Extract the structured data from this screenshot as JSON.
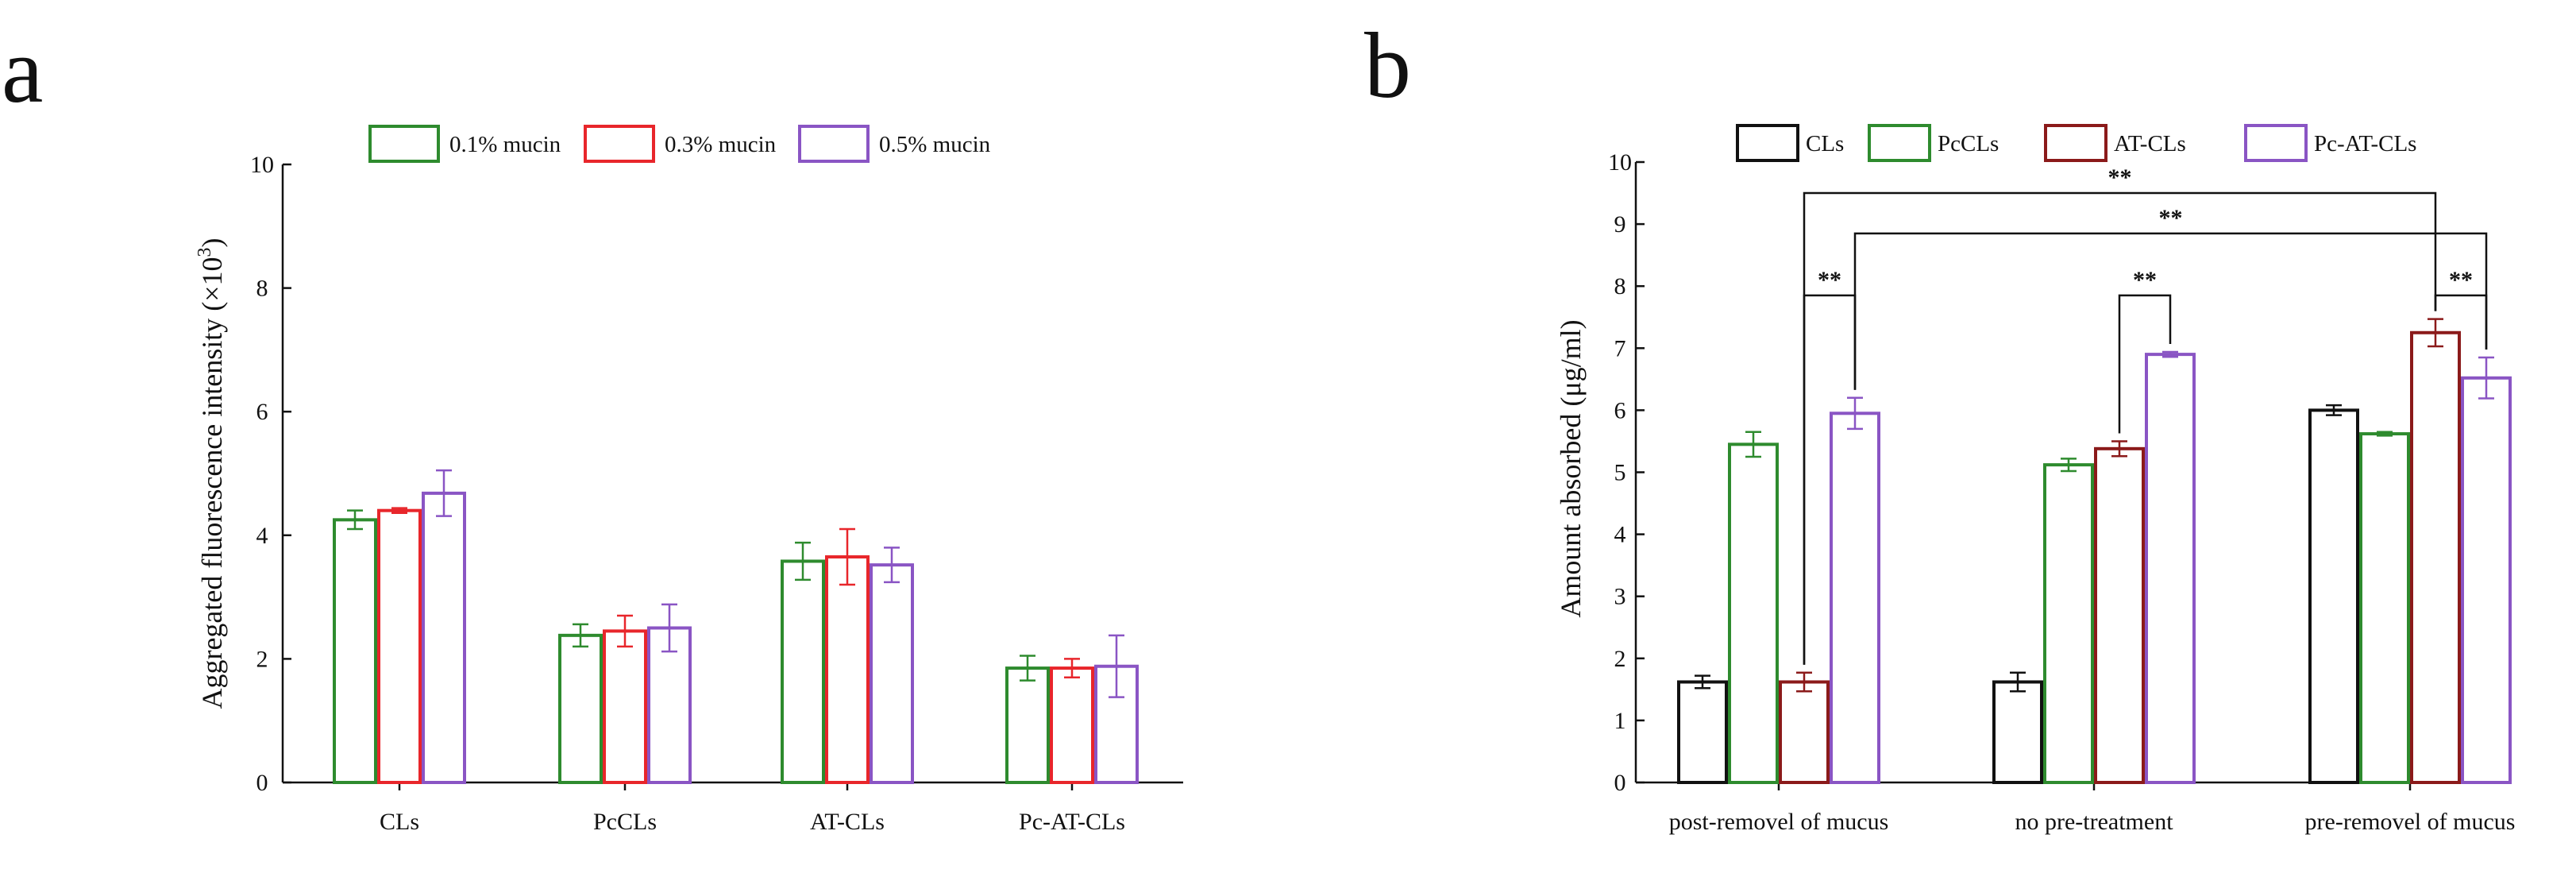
{
  "panel_letters": [
    "a",
    "b"
  ],
  "chart_data": [
    {
      "type": "bar",
      "panel": "a",
      "title": "",
      "xlabel": "",
      "ylabel": "Aggregated fluorescence intensity (×10",
      "ylabel_superscript": "3",
      "ylabel_close": ")",
      "ylim": [
        0,
        10
      ],
      "yticks": [
        0,
        2,
        4,
        6,
        8,
        10
      ],
      "categories": [
        "CLs",
        "PcCLs",
        "AT-CLs",
        "Pc-AT-CLs"
      ],
      "legend_position": "top",
      "series": [
        {
          "name": "0.1% mucin",
          "color": "#2e8b2e",
          "values": [
            4.25,
            2.38,
            3.58,
            1.85
          ],
          "errors": [
            0.15,
            0.18,
            0.3,
            0.2
          ]
        },
        {
          "name": "0.3% mucin",
          "color": "#e8262b",
          "values": [
            4.4,
            2.45,
            3.65,
            1.85
          ],
          "errors": [
            0.04,
            0.25,
            0.45,
            0.15
          ]
        },
        {
          "name": "0.5% mucin",
          "color": "#8a55c4",
          "values": [
            4.68,
            2.5,
            3.52,
            1.88
          ],
          "errors": [
            0.37,
            0.38,
            0.28,
            0.5
          ]
        }
      ]
    },
    {
      "type": "bar",
      "panel": "b",
      "title": "",
      "xlabel": "",
      "ylabel": "Amount absorbed (μg/ml)",
      "ylim": [
        0,
        10
      ],
      "yticks": [
        0,
        1,
        2,
        3,
        4,
        5,
        6,
        7,
        8,
        9,
        10
      ],
      "categories": [
        "post-removel of mucus",
        "no pre-treatment",
        "pre-removel of mucus"
      ],
      "legend_position": "top",
      "series": [
        {
          "name": "CLs",
          "color": "#111111",
          "values": [
            1.62,
            1.62,
            6.0
          ],
          "errors": [
            0.1,
            0.15,
            0.08
          ]
        },
        {
          "name": "PcCLs",
          "color": "#2e8b2e",
          "values": [
            5.45,
            5.12,
            5.62
          ],
          "errors": [
            0.2,
            0.1,
            0.03
          ]
        },
        {
          "name": "AT-CLs",
          "color": "#8b1a1a",
          "values": [
            1.62,
            5.38,
            7.25
          ],
          "errors": [
            0.15,
            0.12,
            0.22
          ]
        },
        {
          "name": "Pc-AT-CLs",
          "color": "#8a55c4",
          "values": [
            5.95,
            6.9,
            6.52
          ],
          "errors": [
            0.25,
            0.04,
            0.33
          ]
        }
      ],
      "significance": [
        {
          "label": "**",
          "from": {
            "category": 0,
            "series": 2
          },
          "to": {
            "category": 0,
            "series": 3
          },
          "level": 7.85
        },
        {
          "label": "**",
          "from": {
            "category": 1,
            "series": 2
          },
          "to": {
            "category": 1,
            "series": 3
          },
          "level": 7.85
        },
        {
          "label": "**",
          "from": {
            "category": 2,
            "series": 2
          },
          "to": {
            "category": 2,
            "series": 3
          },
          "level": 7.85
        },
        {
          "label": "**",
          "from": {
            "category": 0,
            "series": 3
          },
          "to": {
            "category": 2,
            "series": 3
          },
          "level": 8.85
        },
        {
          "label": "**",
          "from": {
            "category": 0,
            "series": 2
          },
          "to": {
            "category": 2,
            "series": 2
          },
          "level": 9.5
        }
      ]
    }
  ]
}
